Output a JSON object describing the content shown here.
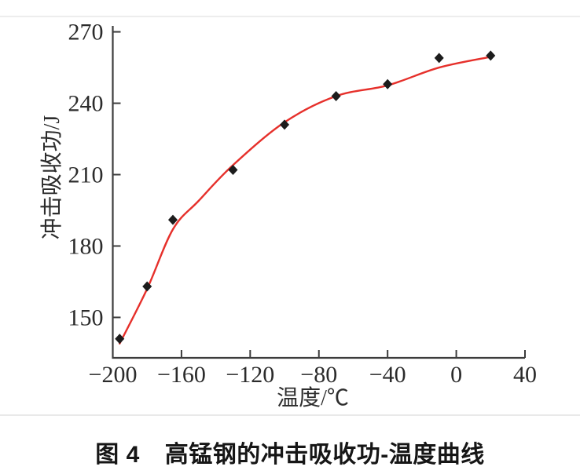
{
  "caption": {
    "number": "图 4",
    "text": "高锰钢的冲击吸收功-温度曲线"
  },
  "chart_data": {
    "type": "scatter",
    "title": "",
    "xlabel": "温度/℃",
    "ylabel": "冲击吸收功/J",
    "xlim": [
      -200,
      40
    ],
    "ylim": [
      133,
      272.5
    ],
    "xticks": [
      -200,
      -160,
      -120,
      -80,
      -40,
      0,
      40
    ],
    "xtick_labels": [
      "−200",
      "−160",
      "−120",
      "−80",
      "−40",
      "0",
      "40"
    ],
    "yticks": [
      150,
      180,
      210,
      240,
      270
    ],
    "ytick_labels": [
      "150",
      "180",
      "210",
      "240",
      "270"
    ],
    "grid": false,
    "legend_position": "none",
    "axis_color": "#3c3c3c",
    "text_color": "#2b2b2b",
    "series": [
      {
        "name": "points",
        "type": "scatter",
        "marker": "diamond",
        "color": "#1c1c1c",
        "x": [
          -196,
          -180,
          -165,
          -130,
          -100,
          -70,
          -40,
          -10,
          20
        ],
        "y": [
          141,
          163,
          191,
          212,
          231,
          243,
          248,
          259,
          260
        ]
      },
      {
        "name": "fit_curve",
        "type": "line",
        "color": "#e6302b",
        "x": [
          -196,
          -180,
          -165,
          -150,
          -130,
          -100,
          -70,
          -40,
          -10,
          20
        ],
        "y": [
          139,
          162,
          187,
          199,
          214,
          232,
          243,
          247.5,
          255,
          259.5
        ]
      }
    ]
  }
}
